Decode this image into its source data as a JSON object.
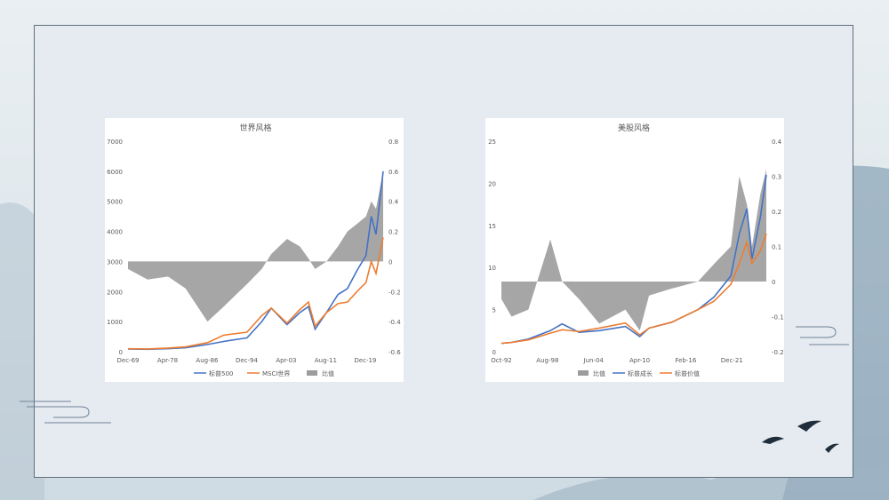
{
  "chart_data": [
    {
      "type": "area+line",
      "title": "世界风格",
      "x_ticks": [
        "Dec-69",
        "Apr-78",
        "Aug-86",
        "Dec-94",
        "Apr-03",
        "Aug-11",
        "Dec-19"
      ],
      "y_left": {
        "min": 0,
        "max": 7000,
        "ticks": [
          "0",
          "1000",
          "2000",
          "3000",
          "4000",
          "5000",
          "6000",
          "7000"
        ]
      },
      "y_right": {
        "min": -0.6,
        "max": 0.8,
        "ticks": [
          "-0.6",
          "-0.4",
          "-0.2",
          "0",
          "0.2",
          "0.4",
          "0.6",
          "0.8"
        ]
      },
      "x": [
        1969.9,
        1974,
        1978.3,
        1982,
        1986.6,
        1990,
        1994.9,
        1998,
        2000,
        2003.3,
        2006,
        2007.8,
        2009.2,
        2011.6,
        2014,
        2016,
        2018,
        2019.9,
        2021,
        2022,
        2023.5
      ],
      "series": [
        {
          "name": "标普500",
          "axis": "left",
          "color": "#4472c4",
          "values": [
            90,
            80,
            100,
            130,
            240,
            340,
            460,
            1000,
            1450,
            900,
            1300,
            1500,
            750,
            1300,
            1900,
            2100,
            2700,
            3200,
            4500,
            3900,
            6000
          ]
        },
        {
          "name": "MSCI世界",
          "axis": "left",
          "color": "#ed7d31",
          "values": [
            100,
            90,
            120,
            160,
            300,
            550,
            650,
            1200,
            1450,
            950,
            1400,
            1650,
            850,
            1300,
            1600,
            1650,
            2000,
            2300,
            3000,
            2600,
            3800
          ]
        },
        {
          "name": "比值",
          "axis": "right",
          "type": "area",
          "color": "#9c9c9c",
          "values": [
            -0.05,
            -0.12,
            -0.1,
            -0.18,
            -0.4,
            -0.3,
            -0.15,
            -0.05,
            0.05,
            0.15,
            0.1,
            0.02,
            -0.05,
            0.0,
            0.1,
            0.2,
            0.25,
            0.3,
            0.4,
            0.35,
            0.6
          ]
        }
      ]
    },
    {
      "type": "area+line",
      "title": "美股风格",
      "x_ticks": [
        "Oct-92",
        "Aug-98",
        "Jun-04",
        "Apr-10",
        "Feb-16",
        "Dec-21"
      ],
      "y_left": {
        "min": 0,
        "max": 25,
        "ticks": [
          "0",
          "5",
          "10",
          "15",
          "20",
          "25"
        ]
      },
      "y_right": {
        "min": -0.2,
        "max": 0.4,
        "ticks": [
          "-0.2",
          "-0.1",
          "0",
          "0.1",
          "0.2",
          "0.3",
          "0.4"
        ]
      },
      "x": [
        1992.8,
        1994,
        1996,
        1998.6,
        2000,
        2002,
        2004.4,
        2007.5,
        2009.2,
        2010.3,
        2013,
        2016.1,
        2018,
        2020,
        2021,
        2021.9,
        2022.5,
        2023.5,
        2024.2
      ],
      "series": [
        {
          "name": "比值",
          "axis": "right",
          "type": "area",
          "color": "#9c9c9c",
          "values": [
            -0.05,
            -0.1,
            -0.08,
            0.12,
            0.0,
            -0.05,
            -0.12,
            -0.08,
            -0.14,
            -0.04,
            -0.02,
            0.0,
            0.05,
            0.1,
            0.3,
            0.22,
            0.1,
            0.25,
            0.32
          ]
        },
        {
          "name": "标普成长",
          "axis": "left",
          "color": "#4472c4",
          "values": [
            1,
            1.1,
            1.5,
            2.5,
            3.3,
            2.3,
            2.5,
            3,
            1.8,
            2.8,
            3.5,
            5,
            6.5,
            9,
            14,
            17,
            11,
            16,
            21
          ]
        },
        {
          "name": "标普价值",
          "axis": "left",
          "color": "#ed7d31",
          "values": [
            1,
            1.1,
            1.4,
            2.2,
            2.6,
            2.4,
            2.8,
            3.4,
            2,
            2.8,
            3.5,
            5,
            6,
            8,
            10.5,
            13,
            10.5,
            12,
            14
          ]
        }
      ]
    }
  ]
}
